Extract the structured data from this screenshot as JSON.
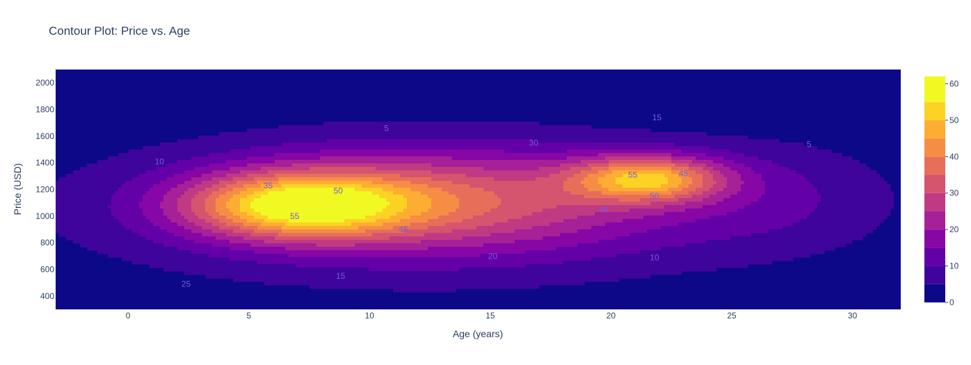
{
  "chart_data": {
    "type": "contour",
    "title": "Contour Plot: Price vs. Age",
    "xlabel": "Age (years)",
    "ylabel": "Price (USD)",
    "xlim": [
      -3,
      32
    ],
    "ylim": [
      300,
      2100
    ],
    "xticks": [
      0,
      5,
      10,
      15,
      20,
      25,
      30
    ],
    "yticks": [
      400,
      600,
      800,
      1000,
      1200,
      1400,
      1600,
      1800,
      2000
    ],
    "colorbar": {
      "ticks": [
        0,
        10,
        20,
        30,
        40,
        50,
        60
      ],
      "range": [
        0,
        62
      ],
      "levels": [
        0,
        5,
        10,
        15,
        20,
        25,
        30,
        35,
        40,
        45,
        50,
        55,
        60
      ],
      "colors": [
        "#0d0887",
        "#3e049c",
        "#6300a7",
        "#8606a6",
        "#a62098",
        "#c03a83",
        "#d5546e",
        "#e76f5a",
        "#f68d45",
        "#fdae32",
        "#fcd225",
        "#f0f921"
      ]
    },
    "peaks": [
      {
        "age": 7,
        "price": 1100,
        "value": 60
      },
      {
        "age": 21.5,
        "price": 1280,
        "value": 57
      }
    ],
    "contour_labels": [
      {
        "text": "5",
        "age": 10.7,
        "price": 1660
      },
      {
        "text": "5",
        "age": 28.2,
        "price": 1540
      },
      {
        "text": "10",
        "age": 1.3,
        "price": 1410
      },
      {
        "text": "10",
        "age": 21.8,
        "price": 690
      },
      {
        "text": "15",
        "age": 21.9,
        "price": 1740
      },
      {
        "text": "15",
        "age": 8.8,
        "price": 550
      },
      {
        "text": "20",
        "age": 15.1,
        "price": 700
      },
      {
        "text": "25",
        "age": 2.4,
        "price": 490
      },
      {
        "text": "30",
        "age": 16.8,
        "price": 1550
      },
      {
        "text": "35",
        "age": 5.8,
        "price": 1230
      },
      {
        "text": "40",
        "age": 19.7,
        "price": 1050
      },
      {
        "text": "45",
        "age": 11.4,
        "price": 900
      },
      {
        "text": "45",
        "age": 23.0,
        "price": 1320
      },
      {
        "text": "50",
        "age": 8.7,
        "price": 1190
      },
      {
        "text": "50",
        "age": 21.8,
        "price": 1150
      },
      {
        "text": "55",
        "age": 6.9,
        "price": 1000
      },
      {
        "text": "55",
        "age": 20.9,
        "price": 1310
      }
    ]
  }
}
